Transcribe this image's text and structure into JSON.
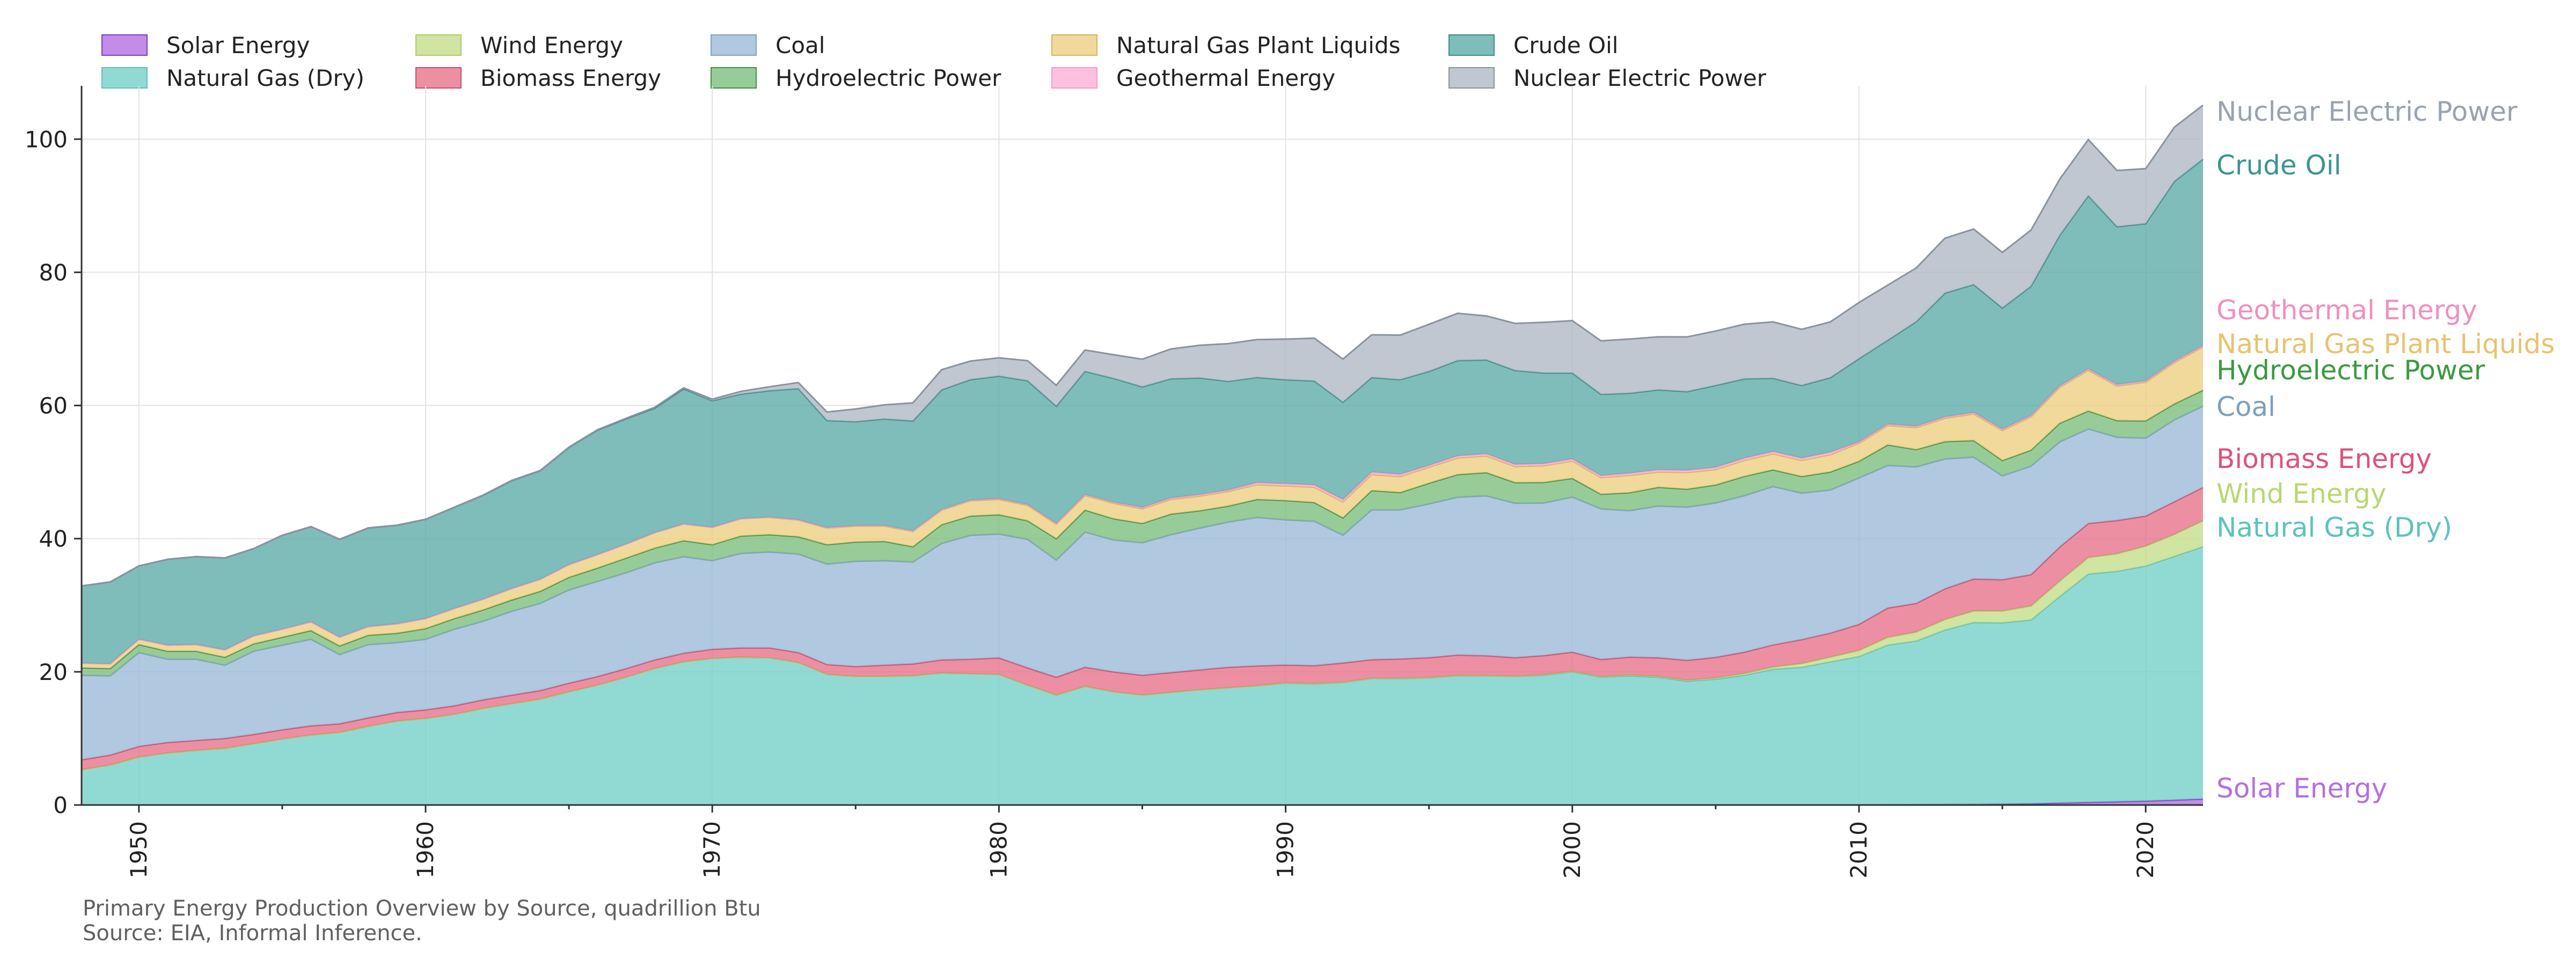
{
  "chart_data": {
    "type": "area",
    "stacked": true,
    "title": "",
    "xlabel": "",
    "ylabel": "",
    "xlim": [
      1948,
      2022
    ],
    "ylim": [
      0,
      108
    ],
    "x_ticks": [
      1950,
      1960,
      1970,
      1980,
      1990,
      2000,
      2010,
      2020
    ],
    "y_ticks": [
      0,
      20,
      40,
      60,
      80,
      100
    ],
    "grid": true,
    "legend_position": "top",
    "end_labels": true,
    "x": [
      1948,
      1949,
      1950,
      1951,
      1952,
      1953,
      1954,
      1955,
      1956,
      1957,
      1958,
      1959,
      1960,
      1961,
      1962,
      1963,
      1964,
      1965,
      1966,
      1967,
      1968,
      1969,
      1970,
      1971,
      1972,
      1973,
      1974,
      1975,
      1976,
      1977,
      1978,
      1979,
      1980,
      1981,
      1982,
      1983,
      1984,
      1985,
      1986,
      1987,
      1988,
      1989,
      1990,
      1991,
      1992,
      1993,
      1994,
      1995,
      1996,
      1997,
      1998,
      1999,
      2000,
      2001,
      2002,
      2003,
      2004,
      2005,
      2006,
      2007,
      2008,
      2009,
      2010,
      2011,
      2012,
      2013,
      2014,
      2015,
      2016,
      2017,
      2018,
      2019,
      2020,
      2021,
      2022
    ],
    "series": [
      {
        "name": "Solar Energy",
        "color": "#b46fe0",
        "values": [
          0,
          0,
          0,
          0,
          0,
          0,
          0,
          0,
          0,
          0,
          0,
          0,
          0,
          0,
          0,
          0,
          0,
          0,
          0,
          0,
          0,
          0,
          0,
          0,
          0,
          0,
          0,
          0,
          0,
          0,
          0,
          0,
          0,
          0,
          0,
          0,
          0,
          0,
          0,
          0,
          0,
          0,
          0,
          0,
          0,
          0,
          0,
          0,
          0,
          0,
          0,
          0,
          0,
          0,
          0,
          0,
          0,
          0,
          0,
          0,
          0,
          0,
          0.01,
          0.02,
          0.05,
          0.08,
          0.12,
          0.16,
          0.2,
          0.3,
          0.4,
          0.5,
          0.6,
          0.75,
          0.9
        ]
      },
      {
        "name": "Natural Gas (Dry)",
        "color": "#76d1c8",
        "values": [
          5.3,
          6.0,
          7.2,
          7.8,
          8.2,
          8.5,
          9.2,
          9.9,
          10.5,
          10.9,
          11.8,
          12.6,
          13.0,
          13.6,
          14.5,
          15.2,
          15.9,
          17.0,
          18.0,
          19.2,
          20.5,
          21.5,
          22.0,
          22.2,
          22.1,
          21.4,
          19.6,
          19.3,
          19.3,
          19.4,
          19.8,
          19.7,
          19.6,
          18.0,
          16.5,
          17.8,
          17.0,
          16.5,
          16.9,
          17.3,
          17.6,
          17.9,
          18.3,
          18.2,
          18.4,
          19.0,
          19.0,
          19.1,
          19.4,
          19.4,
          19.3,
          19.5,
          20.0,
          19.2,
          19.4,
          19.2,
          18.6,
          18.9,
          19.5,
          20.4,
          20.7,
          21.5,
          22.3,
          24.0,
          24.6,
          26.2,
          27.3,
          27.2,
          27.6,
          31.0,
          34.3,
          34.6,
          35.3,
          36.6,
          37.9
        ]
      },
      {
        "name": "Wind Energy",
        "color": "#c4df8a",
        "values": [
          0,
          0,
          0,
          0,
          0,
          0,
          0,
          0,
          0,
          0,
          0,
          0,
          0,
          0,
          0,
          0,
          0,
          0,
          0,
          0,
          0,
          0,
          0,
          0,
          0,
          0,
          0,
          0,
          0,
          0,
          0,
          0,
          0,
          0,
          0,
          0,
          0,
          0,
          0,
          0,
          0,
          0,
          0.03,
          0.03,
          0.03,
          0.03,
          0.04,
          0.03,
          0.03,
          0.03,
          0.03,
          0.05,
          0.06,
          0.07,
          0.11,
          0.12,
          0.14,
          0.18,
          0.26,
          0.34,
          0.55,
          0.72,
          0.92,
          1.17,
          1.34,
          1.6,
          1.73,
          1.78,
          2.1,
          2.34,
          2.48,
          2.64,
          3.0,
          3.3,
          3.9
        ]
      },
      {
        "name": "Biomass Energy",
        "color": "#e8738b",
        "values": [
          1.5,
          1.5,
          1.6,
          1.6,
          1.5,
          1.5,
          1.4,
          1.4,
          1.4,
          1.3,
          1.3,
          1.3,
          1.3,
          1.3,
          1.3,
          1.3,
          1.3,
          1.3,
          1.3,
          1.3,
          1.3,
          1.3,
          1.4,
          1.4,
          1.5,
          1.5,
          1.5,
          1.5,
          1.7,
          1.8,
          2.0,
          2.2,
          2.5,
          2.6,
          2.7,
          2.9,
          3.0,
          3.0,
          3.0,
          3.0,
          3.1,
          3.0,
          2.7,
          2.7,
          2.9,
          2.8,
          2.9,
          3.0,
          3.1,
          3.0,
          2.8,
          2.9,
          2.9,
          2.6,
          2.7,
          2.8,
          3.0,
          3.1,
          3.2,
          3.3,
          3.6,
          3.6,
          3.9,
          4.4,
          4.3,
          4.6,
          4.8,
          4.7,
          4.7,
          5.1,
          5.1,
          5.0,
          4.5,
          4.9,
          5.0
        ]
      },
      {
        "name": "Coal",
        "color": "#9cbad8",
        "values": [
          12.7,
          11.9,
          14.1,
          12.5,
          12.2,
          11.0,
          12.5,
          12.7,
          13.0,
          10.4,
          11.0,
          10.5,
          10.6,
          11.5,
          11.8,
          12.6,
          13.1,
          14.0,
          14.3,
          14.4,
          14.6,
          14.5,
          13.3,
          14.2,
          14.4,
          14.8,
          15.1,
          15.8,
          15.7,
          15.3,
          17.5,
          18.6,
          18.6,
          19.3,
          17.6,
          20.3,
          19.8,
          19.9,
          20.7,
          21.3,
          21.8,
          22.3,
          21.8,
          21.7,
          19.2,
          22.5,
          22.4,
          23.1,
          23.7,
          24.0,
          23.2,
          22.9,
          23.3,
          22.6,
          22.0,
          22.8,
          23.0,
          23.2,
          23.5,
          23.8,
          22.0,
          21.5,
          22.0,
          21.4,
          20.5,
          19.5,
          18.3,
          15.6,
          16.3,
          15.8,
          14.2,
          12.5,
          11.7,
          12.3,
          12.2
        ]
      },
      {
        "name": "Hydroelectric Power",
        "color": "#7dbf7f",
        "values": [
          1.1,
          1.1,
          1.2,
          1.2,
          1.2,
          1.2,
          1.1,
          1.2,
          1.3,
          1.3,
          1.4,
          1.4,
          1.6,
          1.6,
          1.7,
          1.7,
          1.8,
          1.9,
          2.0,
          2.2,
          2.2,
          2.4,
          2.4,
          2.6,
          2.6,
          2.6,
          2.9,
          2.9,
          2.9,
          2.3,
          2.8,
          2.9,
          2.9,
          2.8,
          3.2,
          3.3,
          3.2,
          2.9,
          3.1,
          2.6,
          2.4,
          2.7,
          2.9,
          2.8,
          2.6,
          2.9,
          2.6,
          3.1,
          3.4,
          3.5,
          3.1,
          3.1,
          2.8,
          2.2,
          2.7,
          2.8,
          2.7,
          2.7,
          2.9,
          2.5,
          2.5,
          2.7,
          2.5,
          3.1,
          2.6,
          2.6,
          2.5,
          2.3,
          2.4,
          2.8,
          2.7,
          2.5,
          2.6,
          2.4,
          2.4
        ]
      },
      {
        "name": "Natural Gas Plant Liquids",
        "color": "#edcf82",
        "values": [
          0.7,
          0.7,
          0.8,
          0.9,
          1.0,
          1.1,
          1.2,
          1.2,
          1.3,
          1.3,
          1.3,
          1.4,
          1.5,
          1.5,
          1.6,
          1.7,
          1.8,
          1.9,
          2.0,
          2.1,
          2.3,
          2.5,
          2.6,
          2.6,
          2.6,
          2.5,
          2.5,
          2.4,
          2.3,
          2.3,
          2.2,
          2.3,
          2.3,
          2.3,
          2.2,
          2.2,
          2.3,
          2.2,
          2.2,
          2.2,
          2.2,
          2.2,
          2.2,
          2.3,
          2.4,
          2.4,
          2.4,
          2.4,
          2.5,
          2.5,
          2.4,
          2.5,
          2.6,
          2.5,
          2.6,
          2.3,
          2.5,
          2.3,
          2.4,
          2.4,
          2.4,
          2.6,
          2.7,
          2.9,
          3.3,
          3.5,
          4.0,
          4.5,
          5.0,
          5.4,
          6.1,
          5.2,
          5.8,
          6.2,
          6.5
        ]
      },
      {
        "name": "Geothermal Energy",
        "color": "#ffb0d8",
        "values": [
          0,
          0,
          0,
          0,
          0,
          0,
          0,
          0,
          0,
          0,
          0,
          0,
          0,
          0,
          0,
          0,
          0,
          0,
          0,
          0,
          0,
          0,
          0.01,
          0.01,
          0.03,
          0.04,
          0.05,
          0.07,
          0.08,
          0.08,
          0.06,
          0.08,
          0.11,
          0.12,
          0.1,
          0.13,
          0.17,
          0.2,
          0.22,
          0.23,
          0.22,
          0.32,
          0.34,
          0.35,
          0.36,
          0.37,
          0.34,
          0.29,
          0.32,
          0.32,
          0.33,
          0.33,
          0.32,
          0.31,
          0.33,
          0.33,
          0.34,
          0.34,
          0.34,
          0.35,
          0.36,
          0.37,
          0.21,
          0.21,
          0.21,
          0.21,
          0.21,
          0.21,
          0.21,
          0.21,
          0.21,
          0.21,
          0.21,
          0.21,
          0.21
        ]
      },
      {
        "name": "Crude Oil",
        "color": "#5fada9",
        "values": [
          11.6,
          12.3,
          11.0,
          12.9,
          13.2,
          13.8,
          13.1,
          14.1,
          14.3,
          14.7,
          14.8,
          14.8,
          14.9,
          15.2,
          15.6,
          16.2,
          16.3,
          17.6,
          18.7,
          18.8,
          18.7,
          20.3,
          19.0,
          18.7,
          19.0,
          19.7,
          16.1,
          15.6,
          16.0,
          16.5,
          18.0,
          18.1,
          18.4,
          18.6,
          17.6,
          18.5,
          18.6,
          18.1,
          17.9,
          17.5,
          16.3,
          15.8,
          15.6,
          15.6,
          14.6,
          14.2,
          14.2,
          14.1,
          14.3,
          14.1,
          14.1,
          13.6,
          12.9,
          12.2,
          12.0,
          12.0,
          11.8,
          12.3,
          11.9,
          11.0,
          10.9,
          11.2,
          12.5,
          12.6,
          15.7,
          18.6,
          19.2,
          18.2,
          19.4,
          22.6,
          26.0,
          23.7,
          23.6,
          27.0,
          28.0
        ]
      },
      {
        "name": "Nuclear Electric Power",
        "color": "#b0b9c4",
        "values": [
          0,
          0,
          0,
          0,
          0,
          0,
          0,
          0,
          0,
          0.01,
          0.02,
          0.02,
          0.01,
          0.02,
          0.03,
          0.04,
          0.04,
          0.04,
          0.06,
          0.09,
          0.14,
          0.15,
          0.24,
          0.41,
          0.58,
          0.91,
          1.27,
          1.9,
          2.11,
          2.7,
          3.02,
          2.78,
          2.74,
          3.01,
          3.13,
          3.2,
          3.55,
          4.15,
          4.47,
          4.91,
          5.66,
          5.68,
          6.1,
          6.42,
          6.48,
          6.41,
          6.69,
          7.07,
          7.09,
          6.6,
          7.07,
          7.61,
          7.86,
          8.03,
          8.14,
          7.96,
          8.22,
          8.16,
          8.21,
          8.46,
          8.43,
          8.36,
          8.43,
          8.27,
          8.06,
          8.24,
          8.34,
          8.34,
          8.43,
          8.42,
          8.44,
          8.45,
          8.25,
          8.13,
          8.1
        ]
      }
    ],
    "label_colors": [
      "#b46fe0",
      "#5cc3bc",
      "#b8d870",
      "#e0507a",
      "#7b9fbf",
      "#3a9a3e",
      "#e6c46f",
      "#f08fc0",
      "#3a9590",
      "#98a3ae"
    ],
    "line_colors": [
      "#7a3ec0",
      "#5fc0b6",
      "#a6cf66",
      "#c94d6b",
      "#7fa1c3",
      "#3f8f44",
      "#d7b35a",
      "#f49ac9",
      "#3d8a86",
      "#8a939c"
    ]
  },
  "caption": {
    "line1": "Primary Energy Production Overview by Source, quadrillion Btu",
    "line2": "Source: EIA, Informal Inference."
  }
}
